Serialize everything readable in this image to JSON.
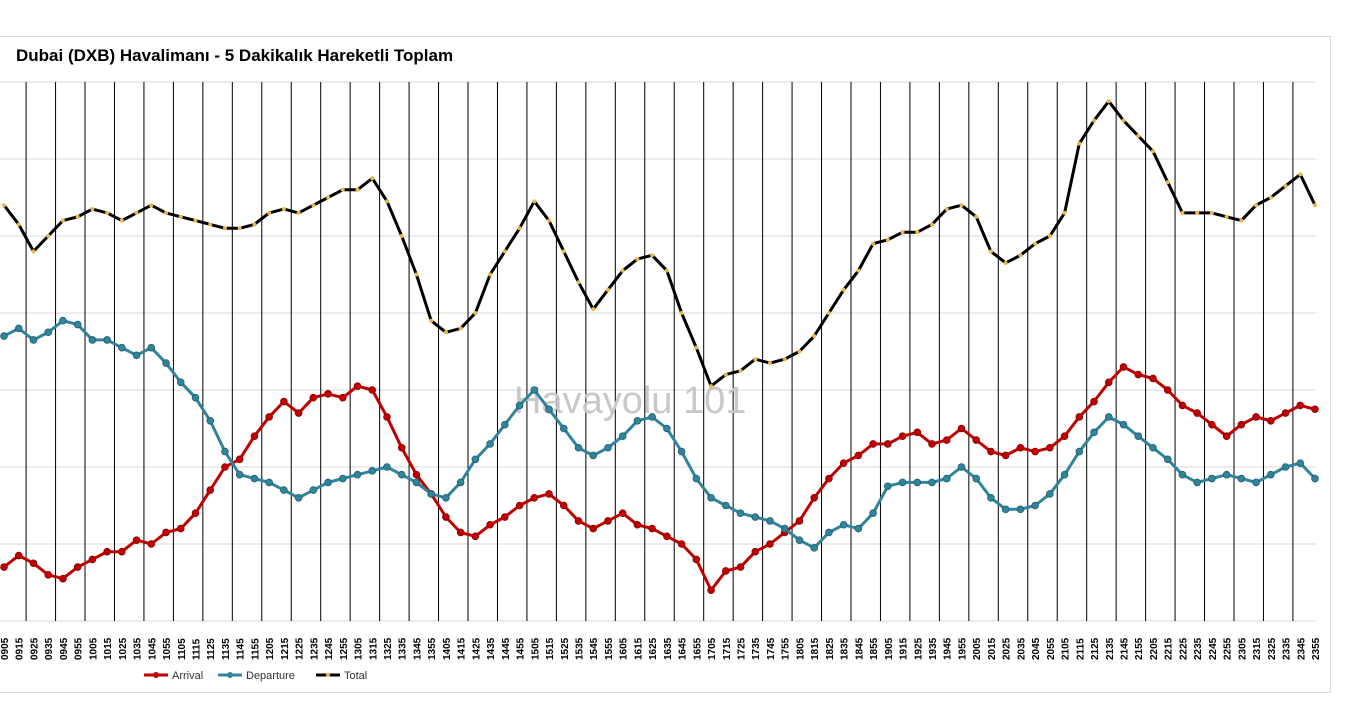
{
  "chart_data": {
    "type": "line",
    "title": "Dubai (DXB) Havalimanı - 5 Dakikalık Hareketli Toplam",
    "watermark": "Havayolu 101",
    "legend_position": "bottom-left",
    "grid": true,
    "categories": [
      "0905",
      "0915",
      "0925",
      "0935",
      "0945",
      "0955",
      "1005",
      "1015",
      "1025",
      "1035",
      "1045",
      "1055",
      "1105",
      "1115",
      "1125",
      "1135",
      "1145",
      "1155",
      "1205",
      "1215",
      "1225",
      "1235",
      "1245",
      "1255",
      "1305",
      "1315",
      "1325",
      "1335",
      "1345",
      "1355",
      "1405",
      "1415",
      "1425",
      "1435",
      "1445",
      "1455",
      "1505",
      "1515",
      "1525",
      "1535",
      "1545",
      "1555",
      "1605",
      "1615",
      "1625",
      "1635",
      "1645",
      "1655",
      "1705",
      "1715",
      "1725",
      "1735",
      "1745",
      "1755",
      "1805",
      "1815",
      "1825",
      "1835",
      "1845",
      "1855",
      "1905",
      "1915",
      "1925",
      "1935",
      "1945",
      "1955",
      "2005",
      "2015",
      "2025",
      "2035",
      "2045",
      "2055",
      "2105",
      "2115",
      "2125",
      "2135",
      "2145",
      "2155",
      "2205",
      "2215",
      "2225",
      "2235",
      "2245",
      "2255",
      "2305",
      "2315",
      "2325",
      "2335",
      "2345",
      "2355"
    ],
    "series": [
      {
        "name": "Arrival",
        "color": "#c00000",
        "values": [
          3.4,
          3.7,
          3.5,
          3.2,
          3.1,
          3.4,
          3.6,
          3.8,
          3.8,
          4.1,
          4.0,
          4.3,
          4.4,
          4.8,
          5.4,
          6.0,
          6.2,
          6.8,
          7.3,
          7.7,
          7.4,
          7.8,
          7.9,
          7.8,
          8.1,
          8.0,
          7.3,
          6.5,
          5.8,
          5.3,
          4.7,
          4.3,
          4.2,
          4.5,
          4.7,
          5.0,
          5.2,
          5.3,
          5.0,
          4.6,
          4.4,
          4.6,
          4.8,
          4.5,
          4.4,
          4.2,
          4.0,
          3.6,
          2.8,
          3.3,
          3.4,
          3.8,
          4.0,
          4.3,
          4.6,
          5.2,
          5.7,
          6.1,
          6.3,
          6.6,
          6.6,
          6.8,
          6.9,
          6.6,
          6.7,
          7.0,
          6.7,
          6.4,
          6.3,
          6.5,
          6.4,
          6.5,
          6.8,
          7.3,
          7.7,
          8.2,
          8.6,
          8.4,
          8.3,
          8.0,
          7.6,
          7.4,
          7.1,
          6.8,
          7.1,
          7.3,
          7.2,
          7.4,
          7.6,
          7.5
        ]
      },
      {
        "name": "Departure",
        "color": "#31849b",
        "values": [
          9.4,
          9.6,
          9.3,
          9.5,
          9.8,
          9.7,
          9.3,
          9.3,
          9.1,
          8.9,
          9.1,
          8.7,
          8.2,
          7.8,
          7.2,
          6.4,
          5.8,
          5.7,
          5.6,
          5.4,
          5.2,
          5.4,
          5.6,
          5.7,
          5.8,
          5.9,
          6.0,
          5.8,
          5.6,
          5.3,
          5.2,
          5.6,
          6.2,
          6.6,
          7.1,
          7.6,
          8.0,
          7.5,
          7.0,
          6.5,
          6.3,
          6.5,
          6.8,
          7.2,
          7.3,
          7.0,
          6.4,
          5.7,
          5.2,
          5.0,
          4.8,
          4.7,
          4.6,
          4.4,
          4.1,
          3.9,
          4.3,
          4.5,
          4.4,
          4.8,
          5.5,
          5.6,
          5.6,
          5.6,
          5.7,
          6.0,
          5.7,
          5.2,
          4.9,
          4.9,
          5.0,
          5.3,
          5.8,
          6.4,
          6.9,
          7.3,
          7.1,
          6.8,
          6.5,
          6.2,
          5.8,
          5.6,
          5.7,
          5.8,
          5.7,
          5.6,
          5.8,
          6.0,
          6.1,
          5.7
        ]
      },
      {
        "name": "Total",
        "color": "#000000",
        "marker_color": "#e8b84a",
        "values": [
          12.8,
          12.3,
          11.6,
          12.0,
          12.4,
          12.5,
          12.7,
          12.6,
          12.4,
          12.6,
          12.8,
          12.6,
          12.5,
          12.4,
          12.3,
          12.2,
          12.2,
          12.3,
          12.6,
          12.7,
          12.6,
          12.8,
          13.0,
          13.2,
          13.2,
          13.5,
          12.9,
          12.0,
          11.0,
          9.8,
          9.5,
          9.6,
          10.0,
          11.0,
          11.6,
          12.2,
          12.9,
          12.4,
          11.6,
          10.8,
          10.1,
          10.6,
          11.1,
          11.4,
          11.5,
          11.1,
          10.0,
          9.1,
          8.1,
          8.4,
          8.5,
          8.8,
          8.7,
          8.8,
          9.0,
          9.4,
          10.0,
          10.6,
          11.1,
          11.8,
          11.9,
          12.1,
          12.1,
          12.3,
          12.7,
          12.8,
          12.5,
          11.6,
          11.3,
          11.5,
          11.8,
          12.0,
          12.6,
          14.4,
          15.0,
          15.5,
          15.0,
          14.6,
          14.2,
          13.4,
          12.6,
          12.6,
          12.6,
          12.5,
          12.4,
          12.8,
          13.0,
          13.3,
          13.6,
          12.8
        ]
      }
    ],
    "ylim": [
      2,
      16
    ]
  }
}
